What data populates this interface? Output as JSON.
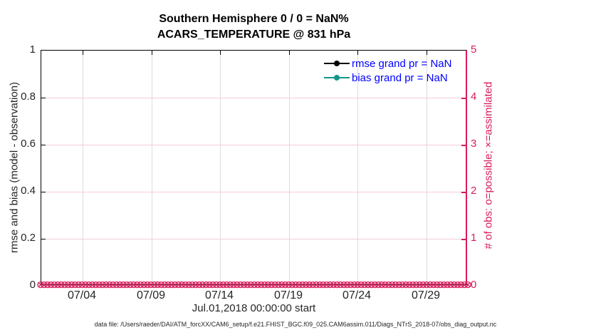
{
  "figure": {
    "title_line1": "Southern Hemisphere 0 / 0 = NaN%",
    "title_line2": "ACARS_TEMPERATURE @ 831 hPa",
    "xlabel": "Jul.01,2018 00:00:00 start",
    "footer": "data file: /Users/raeder/DAI/ATM_forcXX/CAM6_setup/f.e21.FHIST_BGC.f09_025.CAM6assim.011/Diags_NTrS_2018-07/obs_diag_output.nc"
  },
  "chart_data": {
    "type": "line",
    "title": "Southern Hemisphere 0 / 0 = NaN%",
    "subtitle": "ACARS_TEMPERATURE @ 831 hPa",
    "x_axis": {
      "label": "Jul.01,2018 00:00:00 start",
      "tick_labels": [
        "07/04",
        "07/09",
        "07/14",
        "07/19",
        "07/24",
        "07/29"
      ],
      "tick_days": [
        3,
        8,
        13,
        18,
        23,
        28
      ],
      "range_days": [
        0,
        31
      ],
      "grid": true
    },
    "left_axis": {
      "label": "rmse and bias (model - observation)",
      "tick_labels": [
        "0",
        "0.2",
        "0.4",
        "0.6",
        "0.8",
        "1"
      ],
      "tick_values": [
        0,
        0.2,
        0.4,
        0.6,
        0.8,
        1
      ],
      "range": [
        0,
        1
      ],
      "color": "#262626",
      "grid": true
    },
    "right_axis": {
      "label": "# of obs: o=possible; ×=assimilated",
      "tick_labels": [
        "0",
        "1",
        "2",
        "3",
        "4",
        "5"
      ],
      "tick_values": [
        0,
        1,
        2,
        3,
        4,
        5
      ],
      "range": [
        0,
        5
      ],
      "color": "#d81b5c"
    },
    "series": [
      {
        "name": "rmse",
        "grand_mean": "NaN",
        "color": "#000000",
        "marker": "circle",
        "values": []
      },
      {
        "name": "bias",
        "grand_mean": "NaN",
        "color": "#12968a",
        "marker": "circle",
        "values": []
      },
      {
        "name": "possible obs (o)",
        "color": "#d81b5c",
        "marker": "o",
        "constant_value": 0,
        "axis": "right"
      },
      {
        "name": "assimilated obs (×)",
        "color": "#d81b5c",
        "marker": "×",
        "constant_value": 0,
        "axis": "right"
      }
    ],
    "legend": {
      "position": "top-right-inside",
      "text_color": "#0000ff",
      "entries": [
        {
          "label": "rmse grand pr = NaN",
          "color": "#000000"
        },
        {
          "label": "bias grand pr = NaN",
          "color": "#12968a"
        }
      ]
    },
    "obs_band": {
      "value": 0,
      "n_markers": 125,
      "color": "#d81b5c"
    }
  },
  "colors": {
    "right_axis": "#d81b5c",
    "h_grid": "#f4ccd8",
    "v_grid": "#dcdcdc",
    "tick_text": "#262626",
    "legend_text": "#0000ff",
    "bias_teal": "#12968a"
  }
}
